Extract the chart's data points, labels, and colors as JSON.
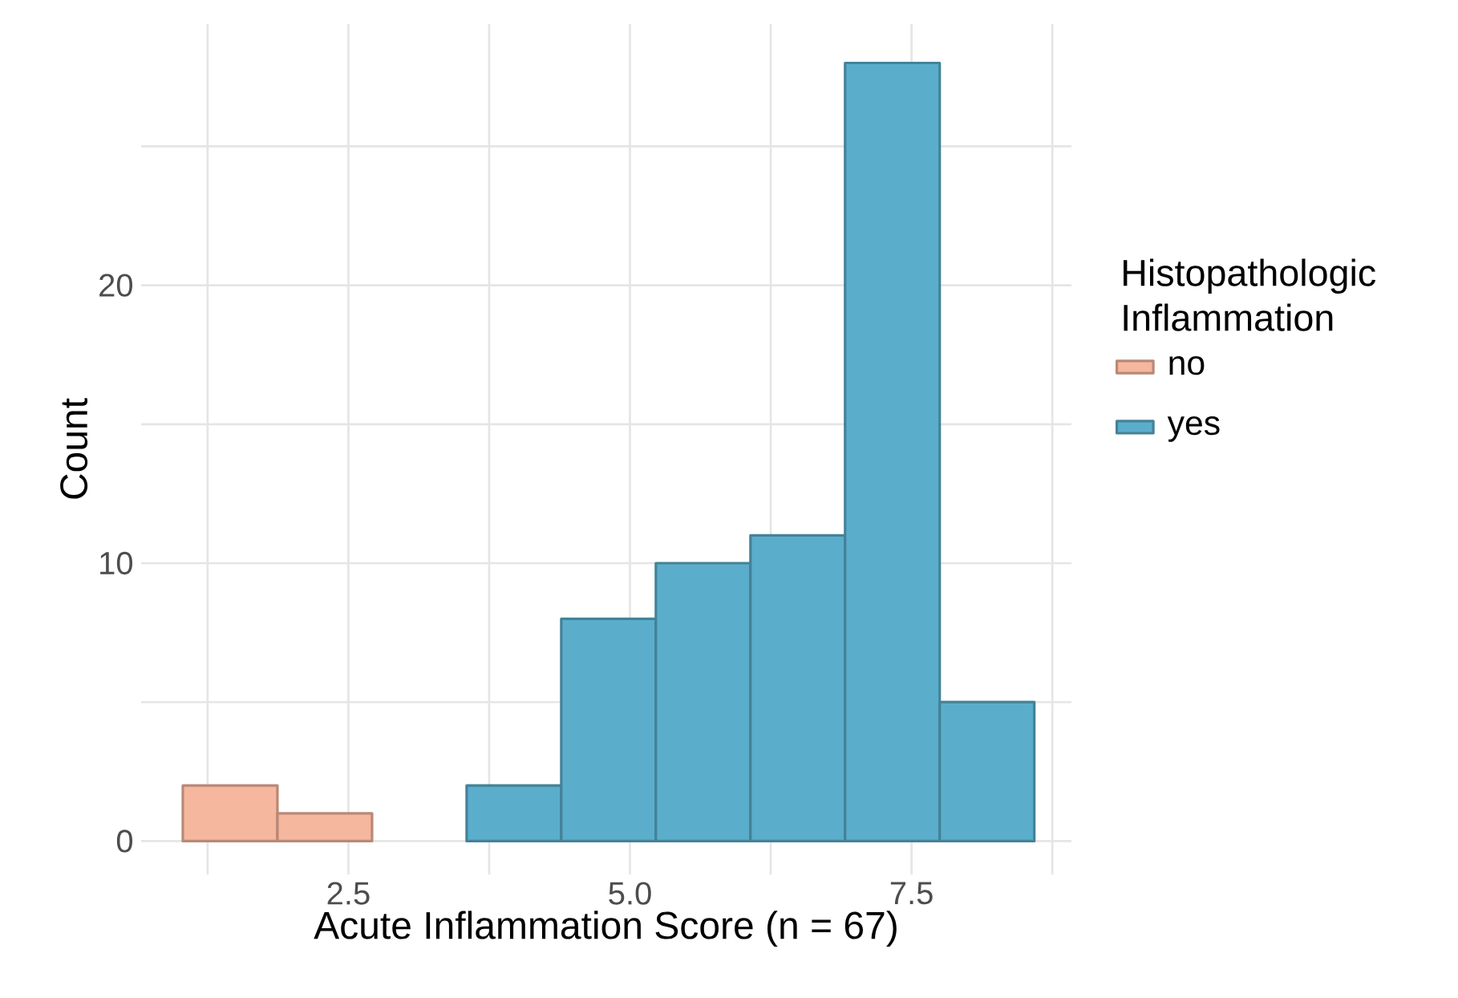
{
  "chart_data": {
    "type": "histogram",
    "xlabel": "Acute Inflammation Score  (n = 67)",
    "ylabel": "Count",
    "legend_title": "Histopathologic Inflammation",
    "bins": [
      1.03,
      1.87,
      2.71,
      3.55,
      4.39,
      5.23,
      6.07,
      6.91,
      7.75,
      8.59
    ],
    "series": [
      {
        "name": "no",
        "color": "#f5b79e",
        "values": [
          2,
          1,
          null,
          null,
          null,
          null,
          null,
          null,
          null
        ]
      },
      {
        "name": "yes",
        "color": "#5aaecb",
        "values": [
          null,
          null,
          null,
          2,
          8,
          10,
          11,
          28,
          5
        ]
      }
    ],
    "xlim": [
      0.66,
      8.92
    ],
    "ylim": [
      -1.2,
      29.4
    ],
    "xticks": [
      {
        "value": 1.25,
        "label": null
      },
      2.5,
      {
        "value": 3.75,
        "label": null
      },
      {
        "value": 5,
        "label": "5.0"
      },
      {
        "value": 6.25,
        "label": null
      },
      7.5,
      {
        "value": 8.75,
        "label": null
      }
    ],
    "yticks": [
      0,
      {
        "value": 5,
        "label": null
      },
      10,
      {
        "value": 15,
        "label": null
      },
      20,
      {
        "value": 25,
        "label": null
      }
    ],
    "grid": true,
    "legend": "right"
  }
}
